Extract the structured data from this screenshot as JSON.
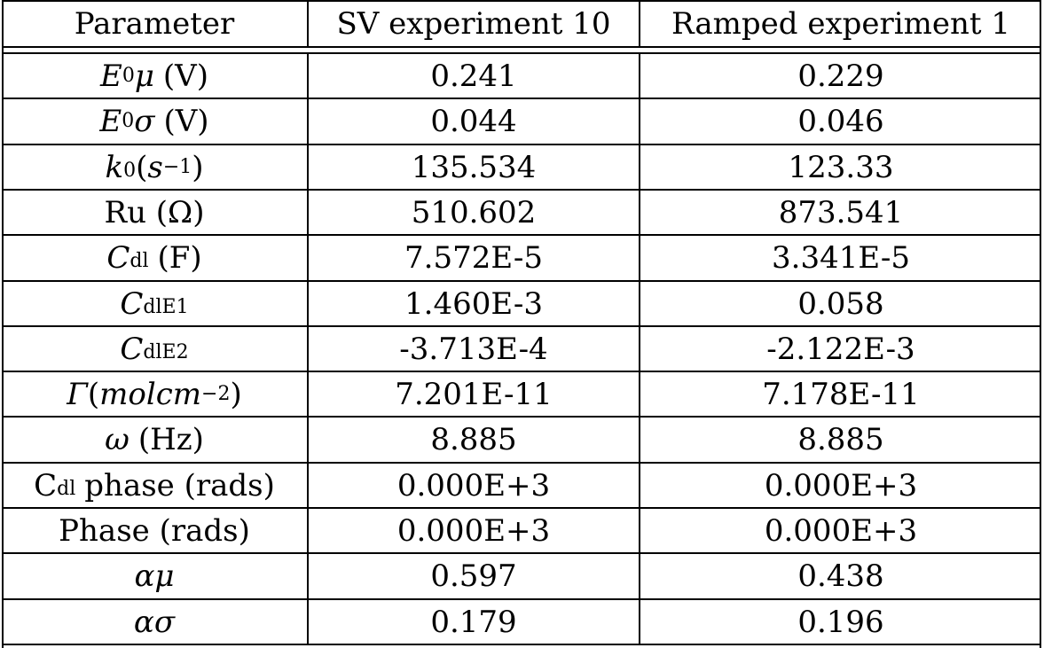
{
  "headers": [
    "Parameter",
    "SV experiment 10",
    "Ramped experiment 1"
  ],
  "rows": [
    {
      "param": {
        "main": "E",
        "sup": "0",
        "tail_it": "μ",
        "unit": "(V)"
      },
      "sv": "0.241",
      "ramped": "0.229"
    },
    {
      "param": {
        "main": "E",
        "sup": "0",
        "tail_it": "σ",
        "unit": "(V)"
      },
      "sv": "0.044",
      "ramped": "0.046"
    },
    {
      "param": {
        "main": "k",
        "sub": "0",
        "rest": "(",
        "rest_it": "s",
        "sup": "−1",
        "close": ")"
      },
      "sv": "135.534",
      "ramped": "123.33"
    },
    {
      "param": {
        "text": "Ru (Ω)"
      },
      "sv": "510.602",
      "ramped": "873.541"
    },
    {
      "param": {
        "main": "C",
        "sub": "dl",
        "unit": "(F)"
      },
      "sv": "7.572E-5",
      "ramped": "3.341E-5"
    },
    {
      "param": {
        "main": "C",
        "sub": "dlE1"
      },
      "sv": "1.460E-3",
      "ramped": "0.058"
    },
    {
      "param": {
        "main": "C",
        "sub": "dlE2"
      },
      "sv": "-3.713E-4",
      "ramped": "-2.122E-3"
    },
    {
      "param": {
        "main": "Γ",
        "rest": "(",
        "rest_it": "molcm",
        "sup": "−2",
        "close": ")"
      },
      "sv": "7.201E-11",
      "ramped": "7.178E-11"
    },
    {
      "param": {
        "main_it": "ω",
        "unit": "(Hz)"
      },
      "sv": "8.885",
      "ramped": "8.885"
    },
    {
      "param": {
        "pre": "C",
        "sub": "dl",
        "unit": "phase (rads)"
      },
      "sv": "0.000E+3",
      "ramped": "0.000E+3"
    },
    {
      "param": {
        "text": "Phase (rads)"
      },
      "sv": "0.000E+3",
      "ramped": "0.000E+3"
    },
    {
      "param": {
        "main_it": "αμ"
      },
      "sv": "0.597",
      "ramped": "0.438"
    },
    {
      "param": {
        "main_it": "ασ"
      },
      "sv": "0.179",
      "ramped": "0.196"
    }
  ]
}
